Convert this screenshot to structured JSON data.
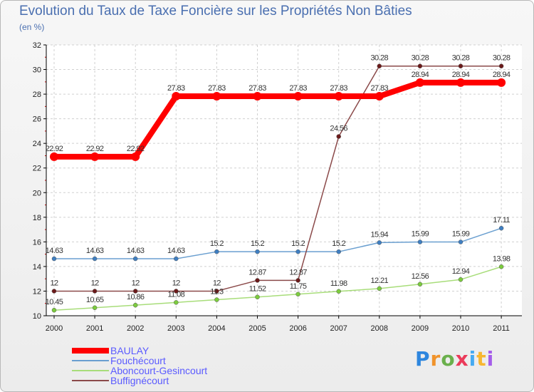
{
  "header": {
    "title": "Evolution du Taux de Taxe Foncière sur les Propriétés Non Bâties",
    "unit": "(en %)"
  },
  "logo": {
    "letters": [
      "P",
      "r",
      "o",
      "x",
      "i",
      "t",
      "i"
    ],
    "colors": [
      "#2e86de",
      "#f0932b",
      "#6ab04c",
      "#eb3b5a",
      "#45aaf2",
      "#f7b731",
      "#a55eea"
    ]
  },
  "chart_data": {
    "type": "line",
    "title": "Evolution du Taux de Taxe Foncière sur les Propriétés Non Bâties",
    "ylabel": "(en %)",
    "xlabel": "",
    "ylim": [
      10,
      32
    ],
    "yticks": [
      "10",
      "12",
      "14",
      "16",
      "18",
      "20",
      "22",
      "24",
      "26",
      "28",
      "30",
      "32"
    ],
    "x": [
      "2000",
      "2001",
      "2002",
      "2003",
      "2004",
      "2005",
      "2006",
      "2007",
      "2008",
      "2009",
      "2010",
      "2011"
    ],
    "grid": true,
    "legend_position": "bottom-left",
    "series": [
      {
        "name": "BAULAY",
        "color": "#ff0000",
        "marker": "#ff0000",
        "width": 8,
        "values": [
          22.92,
          22.92,
          22.92,
          27.83,
          27.83,
          27.83,
          27.83,
          27.83,
          27.83,
          28.94,
          28.94,
          28.94
        ],
        "labels": [
          "22.92",
          "22.92",
          "22.92",
          "27.83",
          "27.83",
          "27.83",
          "27.83",
          "27.83",
          "27.83",
          "28.94",
          "28.94",
          "28.94"
        ]
      },
      {
        "name": "Fouchécourt",
        "color": "#6a9fd0",
        "marker": "#3f7fc2",
        "width": 1.5,
        "values": [
          14.63,
          14.63,
          14.63,
          14.63,
          15.2,
          15.2,
          15.2,
          15.2,
          15.94,
          15.99,
          15.99,
          17.11
        ],
        "labels": [
          "14.63",
          "14.63",
          "14.63",
          "14.63",
          "15.2",
          "15.2",
          "15.2",
          "15.2",
          "15.94",
          "15.99",
          "15.99",
          "17.11"
        ]
      },
      {
        "name": "Aboncourt-Gesincourt",
        "color": "#a8dd7a",
        "marker": "#7ccc3e",
        "width": 1.5,
        "values": [
          10.45,
          10.65,
          10.86,
          11.08,
          11.3,
          11.52,
          11.75,
          11.98,
          12.21,
          12.56,
          12.94,
          13.98
        ],
        "labels": [
          "10.45",
          "10.65",
          "10.86",
          "11.08",
          "11.3",
          "11.52",
          "11.75",
          "11.98",
          "12.21",
          "12.56",
          "12.94",
          "13.98"
        ]
      },
      {
        "name": "Buffignécourt",
        "color": "#8b4a4a",
        "marker": "#6b1a1a",
        "width": 1.5,
        "values": [
          12,
          12,
          12,
          12,
          12,
          12.87,
          12.87,
          24.56,
          30.28,
          30.28,
          30.28,
          30.28
        ],
        "labels": [
          "12",
          "12",
          "12",
          "12",
          "12",
          "12.87",
          "12.87",
          "24.56",
          "30.28",
          "30.28",
          "30.28",
          "30.28"
        ]
      }
    ]
  }
}
